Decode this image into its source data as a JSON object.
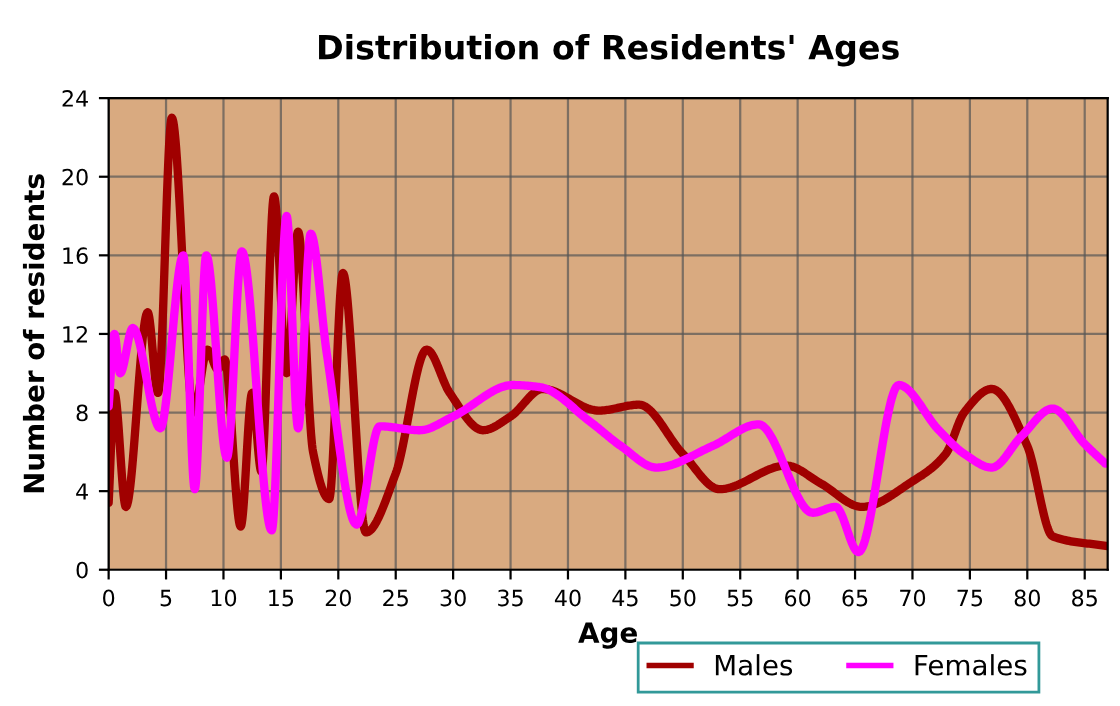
{
  "chart_data": {
    "type": "line",
    "title": "Distribution of Residents' Ages",
    "xlabel": "Age",
    "ylabel": "Number of residents",
    "xlim": [
      0,
      87
    ],
    "xticks": [
      0,
      5,
      10,
      15,
      20,
      25,
      30,
      35,
      40,
      45,
      50,
      55,
      60,
      65,
      70,
      75,
      80,
      85
    ],
    "ylim": [
      0,
      24
    ],
    "yticks": [
      0,
      4,
      8,
      12,
      16,
      20,
      24
    ],
    "grid": true,
    "legend": "bottom",
    "marker": "none",
    "line_style": "solid",
    "series": [
      {
        "name": "Males",
        "color": "#a00000",
        "x": [
          0,
          0.5,
          1.5,
          3.4,
          4.3,
          5.5,
          7.4,
          8.6,
          9.5,
          10.1,
          11.5,
          12.5,
          13.3,
          14.4,
          15.5,
          16.5,
          17.8,
          19.2,
          20.4,
          22.4,
          25,
          27.7,
          29.7,
          32.6,
          35,
          37.8,
          42.7,
          46.2,
          50,
          53.2,
          59,
          62,
          65.6,
          70,
          72.9,
          74.5,
          76.9,
          80,
          82.2,
          87
        ],
        "values": [
          3.4,
          9,
          3.2,
          13.1,
          9,
          23,
          8,
          11.2,
          10.2,
          10.7,
          2.2,
          9,
          5,
          19,
          10,
          17.2,
          6,
          3.6,
          15.1,
          1.9,
          4.9,
          11.2,
          9,
          7.1,
          7.8,
          9.2,
          8.1,
          8.4,
          5.9,
          4.1,
          5.3,
          4.4,
          3.2,
          4.5,
          5.9,
          8,
          9.2,
          6.3,
          1.7,
          1.2
        ]
      },
      {
        "name": "Females",
        "color": "#ff00ff",
        "x": [
          0,
          0.5,
          1,
          2.1,
          4.5,
          6.5,
          7.5,
          8.5,
          10.3,
          11.6,
          14.2,
          15.5,
          16.5,
          17.6,
          19,
          21.6,
          23.6,
          27.1,
          30,
          35.2,
          37.5,
          42,
          44.6,
          47.7,
          52.6,
          56.6,
          61.3,
          63.3,
          65.3,
          68.8,
          72.3,
          74.5,
          76.9,
          79.5,
          82.2,
          85,
          86.8
        ],
        "values": [
          8.3,
          12,
          10,
          12.3,
          7.2,
          16,
          4.1,
          16,
          5.7,
          16.2,
          2,
          18,
          7.2,
          17.1,
          11,
          2.3,
          7.3,
          7.1,
          7.8,
          9.4,
          9.3,
          7.5,
          6.3,
          5.2,
          6.3,
          7.4,
          2.9,
          3.2,
          0.9,
          9.4,
          7.1,
          5.9,
          5.2,
          6.8,
          8.2,
          6.4,
          5.4
        ]
      }
    ]
  }
}
